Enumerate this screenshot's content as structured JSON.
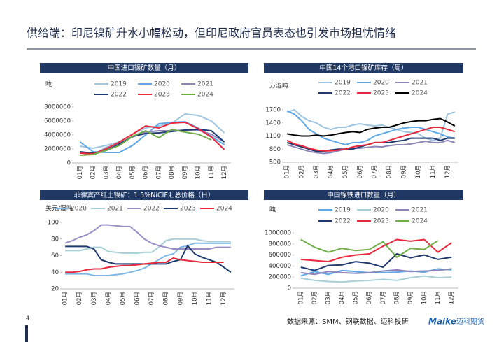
{
  "header": {
    "title": "供给端：印尼镍矿升水小幅松动，但印尼政府官员表态也引发市场担忧情绪"
  },
  "footer": {
    "source": "数据来源：SMM、钢联数据、迈科投研",
    "page": "4",
    "logo": "Maike",
    "logo_cn": "迈科期货"
  },
  "chart_data": [
    {
      "type": "line",
      "title": "中国进口镍矿数量（月）",
      "y_label": "吨",
      "categories": [
        "01月",
        "02月",
        "03月",
        "04月",
        "05月",
        "06月",
        "07月",
        "08月",
        "09月",
        "10月",
        "11月",
        "12月"
      ],
      "ylim": [
        0,
        8000000
      ],
      "yticks": [
        0,
        2000000,
        4000000,
        6000000,
        8000000
      ],
      "series": [
        {
          "name": "2019",
          "color": "#9fc5e0",
          "values": [
            2400000,
            2100000,
            2500000,
            3000000,
            4100000,
            5000000,
            5300000,
            5700000,
            7000000,
            6800000,
            6000000,
            4300000
          ]
        },
        {
          "name": "2020",
          "color": "#5fa8e8",
          "values": [
            3000000,
            1600000,
            1500000,
            1500000,
            2500000,
            4000000,
            5600000,
            5800000,
            5900000,
            5000000,
            3800000,
            2600000
          ]
        },
        {
          "name": "2021",
          "color": "#8e86b8",
          "values": [
            1500000,
            1200000,
            2200000,
            2800000,
            3700000,
            4400000,
            4600000,
            4600000,
            4700000,
            4700000,
            4100000,
            3000000
          ]
        },
        {
          "name": "2022",
          "color": "#1f3a6e",
          "values": [
            1600000,
            1400000,
            1800000,
            2700000,
            3800000,
            4200000,
            4300000,
            4500000,
            4700000,
            4800000,
            4600000,
            3000000
          ]
        },
        {
          "name": "2023",
          "color": "#e8283c",
          "values": [
            1400000,
            1300000,
            2000000,
            3000000,
            4100000,
            5300000,
            5000000,
            5700000,
            5800000,
            4900000,
            3700000,
            1900000
          ]
        },
        {
          "name": "2024",
          "color": "#70ad47",
          "values": [
            1100000,
            1200000,
            1800000,
            2500000,
            3800000,
            4600000,
            3600000,
            4800000,
            4400000,
            4100000,
            3300000,
            null
          ]
        }
      ]
    },
    {
      "type": "line",
      "title": "中国14个港口镍矿库存（周）",
      "y_label": "万湿吨",
      "categories": [
        "01月",
        null,
        "02月",
        null,
        "03月",
        null,
        "04月",
        null,
        "05月",
        null,
        "06月",
        null,
        "07月",
        null,
        "08月",
        null,
        "09月",
        null,
        "10月",
        null,
        "11月",
        null,
        "12月",
        null
      ],
      "ylim": [
        500,
        1700
      ],
      "yticks": [
        500,
        800,
        1100,
        1400,
        1700
      ],
      "series": [
        {
          "name": "2019",
          "color": "#9fc5e0",
          "values": [
            1650,
            1700,
            1550,
            1450,
            1400,
            1300,
            1250,
            1300,
            1300,
            1350,
            1380,
            1350,
            1330,
            1350,
            1300,
            1250,
            1200,
            1180,
            1150,
            1050,
            1000,
            1050,
            1600,
            1650
          ]
        },
        {
          "name": "2020",
          "color": "#5fa8e8",
          "values": [
            1680,
            1600,
            1450,
            1250,
            1150,
            1050,
            1000,
            950,
            900,
            950,
            950,
            1000,
            1100,
            1150,
            1200,
            1250,
            1280,
            1300,
            1300,
            1250,
            1200,
            1150,
            1080,
            1050
          ]
        },
        {
          "name": "2021",
          "color": "#8e86b8",
          "values": [
            900,
            850,
            800,
            750,
            720,
            700,
            720,
            760,
            800,
            820,
            820,
            840,
            860,
            850,
            880,
            900,
            900,
            920,
            950,
            980,
            950,
            950,
            1000,
            950
          ]
        },
        {
          "name": "2022",
          "color": "#1f3a6e",
          "values": [
            950,
            900,
            850,
            800,
            750,
            750,
            780,
            800,
            800,
            800,
            850,
            900,
            950,
            950,
            950,
            980,
            1000,
            1050,
            1050,
            1050,
            1050,
            1000,
            1050,
            1050
          ]
        },
        {
          "name": "2023",
          "color": "#e8283c",
          "values": [
            1000,
            920,
            880,
            820,
            780,
            760,
            760,
            780,
            800,
            850,
            880,
            900,
            950,
            950,
            1000,
            1050,
            1100,
            1150,
            1200,
            1250,
            1300,
            1300,
            1250,
            1200
          ]
        },
        {
          "name": "2024",
          "color": "#000000",
          "values": [
            1150,
            1120,
            1100,
            1100,
            1120,
            1100,
            1120,
            1150,
            1180,
            1200,
            1180,
            1250,
            1280,
            1300,
            1300,
            1350,
            1400,
            1430,
            1450,
            1450,
            1480,
            1500,
            1420,
            1330
          ]
        }
      ]
    },
    {
      "type": "line",
      "title": "菲律宾产红土镍矿：1.5%NiCIF汇总价格（日）",
      "y_label": "美元/湿吨",
      "categories": [
        "01月",
        null,
        "02月",
        null,
        "03月",
        null,
        "04月",
        null,
        "05月",
        null,
        "06月",
        null,
        "07月",
        null,
        "08月",
        null,
        "09月",
        null,
        "10月",
        null,
        "11月",
        null,
        "12月",
        null
      ],
      "ylim": [
        20,
        100
      ],
      "yticks": [
        20,
        40,
        60,
        80,
        100
      ],
      "series": [
        {
          "name": "2020",
          "color": "#7fb8e6",
          "values": [
            38,
            38,
            38,
            38,
            36,
            36,
            36,
            37,
            38,
            40,
            42,
            45,
            50,
            55,
            60,
            62,
            70,
            72,
            75,
            75,
            75,
            75,
            75,
            75
          ]
        },
        {
          "name": "2021",
          "color": "#a8cfd6",
          "values": [
            66,
            66,
            66,
            68,
            70,
            70,
            65,
            64,
            63,
            63,
            63,
            64,
            64,
            70,
            78,
            80,
            80,
            80,
            80,
            78,
            77,
            77,
            77,
            77
          ]
        },
        {
          "name": "2022",
          "color": "#9a8fc4",
          "values": [
            75,
            78,
            82,
            85,
            90,
            97,
            97,
            96,
            95,
            95,
            88,
            80,
            75,
            72,
            70,
            68,
            68,
            68,
            68,
            68,
            68,
            70,
            70,
            70
          ]
        },
        {
          "name": "2023",
          "color": "#1f3a6e",
          "values": [
            71,
            71,
            71,
            71,
            68,
            55,
            52,
            50,
            50,
            50,
            50,
            50,
            50,
            50,
            50,
            53,
            55,
            72,
            62,
            58,
            55,
            52,
            46,
            40
          ]
        },
        {
          "name": "2024",
          "color": "#e8283c",
          "values": [
            40,
            40,
            41,
            43,
            44,
            44,
            46,
            47,
            48,
            48,
            49,
            50,
            51,
            52,
            52,
            57,
            55,
            54,
            53,
            52,
            52,
            52,
            52,
            null
          ]
        }
      ]
    },
    {
      "type": "line",
      "title": "中国镍铁进口数量（月）",
      "y_label": "吨",
      "categories": [
        "01月",
        "02月",
        "03月",
        "04月",
        "05月",
        "06月",
        "07月",
        "08月",
        "09月",
        "10月",
        "11月",
        "12月"
      ],
      "ylim": [
        0,
        1000000
      ],
      "yticks": [
        0,
        200000,
        400000,
        600000,
        800000,
        1000000
      ],
      "series": [
        {
          "name": "2019",
          "color": "#5fa8e8",
          "values": [
            220000,
            300000,
            250000,
            320000,
            300000,
            280000,
            280000,
            290000,
            310000,
            290000,
            350000,
            330000
          ]
        },
        {
          "name": "2020",
          "color": "#a8cfd6",
          "values": [
            180000,
            140000,
            120000,
            110000,
            130000,
            140000,
            160000,
            140000,
            190000,
            220000,
            190000,
            200000
          ]
        },
        {
          "name": "2021",
          "color": "#8e86b8",
          "values": [
            280000,
            250000,
            300000,
            280000,
            270000,
            280000,
            310000,
            330000,
            300000,
            310000,
            320000,
            350000
          ]
        },
        {
          "name": "2022",
          "color": "#1f3a6e",
          "values": [
            380000,
            320000,
            410000,
            420000,
            480000,
            450000,
            380000,
            620000,
            550000,
            600000,
            520000,
            560000
          ]
        },
        {
          "name": "2023",
          "color": "#e8283c",
          "values": [
            520000,
            500000,
            480000,
            560000,
            600000,
            620000,
            760000,
            880000,
            850000,
            880000,
            650000,
            820000
          ]
        },
        {
          "name": "2024",
          "color": "#70ad47",
          "values": [
            880000,
            740000,
            650000,
            720000,
            680000,
            700000,
            840000,
            560000,
            720000,
            700000,
            860000,
            null
          ]
        }
      ]
    }
  ]
}
